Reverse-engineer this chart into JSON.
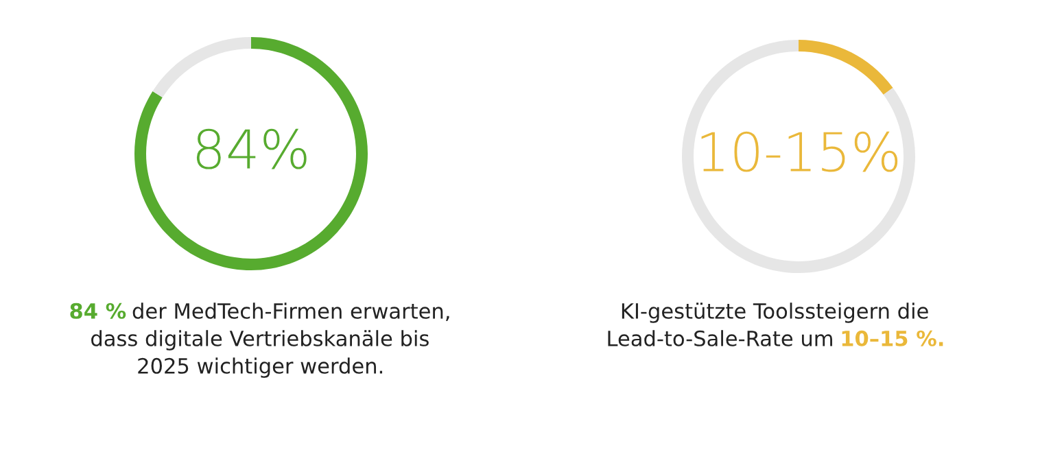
{
  "chart_data": [
    {
      "type": "donut",
      "categories": [
        null,
        null
      ],
      "values": [
        84,
        16
      ],
      "colors": [
        "#57ab2f",
        "#e6e6e6"
      ],
      "title": "84%",
      "annotations": [
        "84 %",
        "der MedTech-Firmen erwarten,",
        "dass digitale Vertriebskanäle bis",
        "2025 wichtiger werden."
      ]
    },
    {
      "type": "donut",
      "categories": [
        null,
        null
      ],
      "values": [
        15,
        85
      ],
      "colors": [
        "#eab83a",
        "#e6e6e6"
      ],
      "title": "10-15%",
      "annotations": [
        "KI-gestützte Toolssteigern die",
        "Lead-to-Sale-Rate um",
        "10–15 %."
      ]
    }
  ]
}
